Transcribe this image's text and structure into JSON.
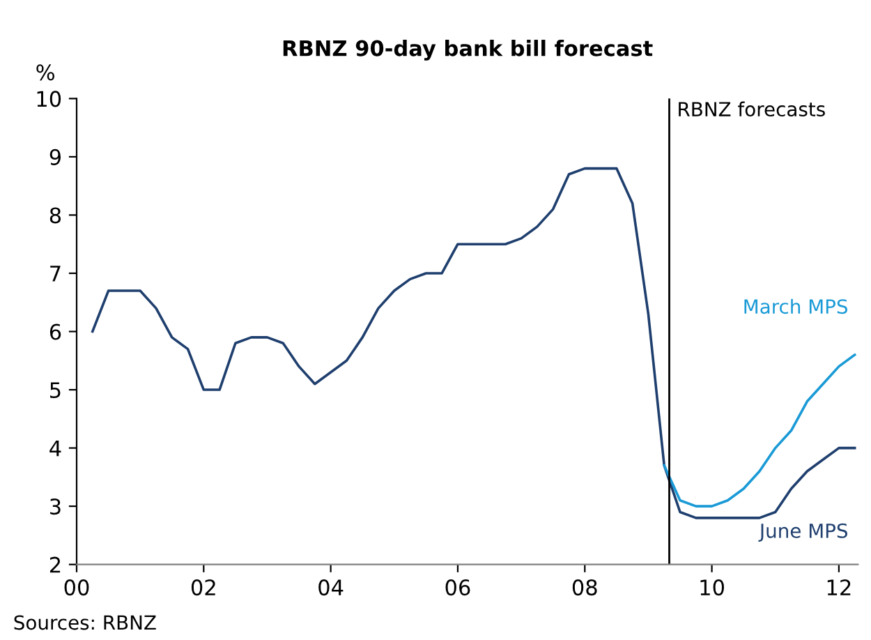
{
  "chart_data": {
    "type": "line",
    "title": "RBNZ 90-day bank bill forecast",
    "ylabel": "%",
    "xlim": [
      0,
      12.3
    ],
    "xticks": [
      {
        "value": 0,
        "label": "00"
      },
      {
        "value": 2,
        "label": "02"
      },
      {
        "value": 4,
        "label": "04"
      },
      {
        "value": 6,
        "label": "06"
      },
      {
        "value": 8,
        "label": "08"
      },
      {
        "value": 10,
        "label": "10"
      },
      {
        "value": 12,
        "label": "12"
      }
    ],
    "ylim": [
      2,
      10
    ],
    "yticks": [
      2,
      3,
      4,
      5,
      6,
      7,
      8,
      9,
      10
    ],
    "grid": false,
    "legend": false,
    "series": [
      {
        "name": "June MPS",
        "color": "#1f3f6e",
        "x": [
          0.25,
          0.5,
          0.75,
          1.0,
          1.25,
          1.5,
          1.75,
          2.0,
          2.25,
          2.5,
          2.75,
          3.0,
          3.25,
          3.5,
          3.75,
          4.0,
          4.25,
          4.5,
          4.75,
          5.0,
          5.25,
          5.5,
          5.75,
          6.0,
          6.25,
          6.5,
          6.75,
          7.0,
          7.25,
          7.5,
          7.75,
          8.0,
          8.25,
          8.5,
          8.75,
          9.0,
          9.25,
          9.5,
          9.75,
          10.0,
          10.25,
          10.5,
          10.75,
          11.0,
          11.25,
          11.5,
          11.75,
          12.0,
          12.25
        ],
        "values": [
          6.0,
          6.7,
          6.7,
          6.7,
          6.4,
          5.9,
          5.7,
          5.0,
          5.0,
          5.8,
          5.9,
          5.9,
          5.8,
          5.4,
          5.1,
          5.3,
          5.5,
          5.9,
          6.4,
          6.7,
          6.9,
          7.0,
          7.0,
          7.5,
          7.5,
          7.5,
          7.5,
          7.6,
          7.8,
          8.1,
          8.7,
          8.8,
          8.8,
          8.8,
          8.2,
          6.3,
          3.7,
          2.9,
          2.8,
          2.8,
          2.8,
          2.8,
          2.8,
          2.9,
          3.3,
          3.6,
          3.8,
          4.0,
          4.0
        ]
      },
      {
        "name": "March MPS",
        "color": "#1a9ad6",
        "x": [
          9.25,
          9.5,
          9.75,
          10.0,
          10.25,
          10.5,
          10.75,
          11.0,
          11.25,
          11.5,
          11.75,
          12.0,
          12.25
        ],
        "values": [
          3.7,
          3.1,
          3.0,
          3.0,
          3.1,
          3.3,
          3.6,
          4.0,
          4.3,
          4.8,
          5.1,
          5.4,
          5.6
        ]
      }
    ],
    "ref_lines": [
      {
        "axis": "x",
        "value": 9.33,
        "label": "RBNZ forecasts",
        "color": "#000000"
      }
    ],
    "annotations": [
      "Sources: RBNZ"
    ]
  }
}
